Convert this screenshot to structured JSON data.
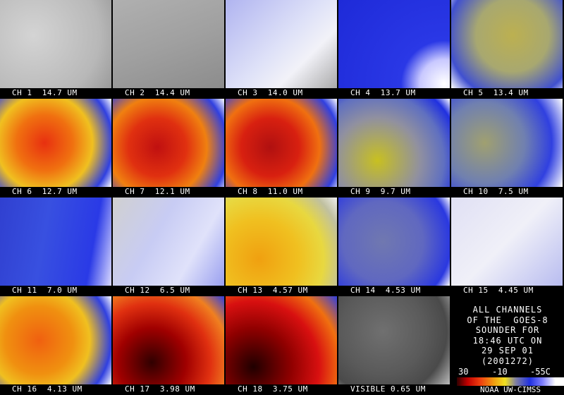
{
  "panels": [
    "CH 1  14.7 UM",
    "CH 2  14.4 UM",
    "CH 3  14.0 UM",
    "CH 4  13.7 UM",
    "CH 5  13.4 UM",
    "CH 6  12.7 UM",
    "CH 7  12.1 UM",
    "CH 8  11.0 UM",
    "CH 9  9.7 UM",
    "CH 10  7.5 UM",
    "CH 11  7.0 UM",
    "CH 12  6.5 UM",
    "CH 13  4.57 UM",
    "CH 14  4.53 UM",
    "CH 15  4.45 UM",
    "CH 16  4.13 UM",
    "CH 17  3.98 UM",
    "CH 18  3.75 UM",
    "VISIBLE 0.65 UM"
  ],
  "info": {
    "lines": [
      "ALL CHANNELS",
      "OF THE  GOES-8",
      "SOUNDER FOR",
      "18:46 UTC ON",
      "29 SEP 01",
      "(2001272)"
    ],
    "scale_labels": [
      "30",
      "-10",
      "-55C"
    ],
    "credit": "NOAA UW-CIMSS"
  }
}
